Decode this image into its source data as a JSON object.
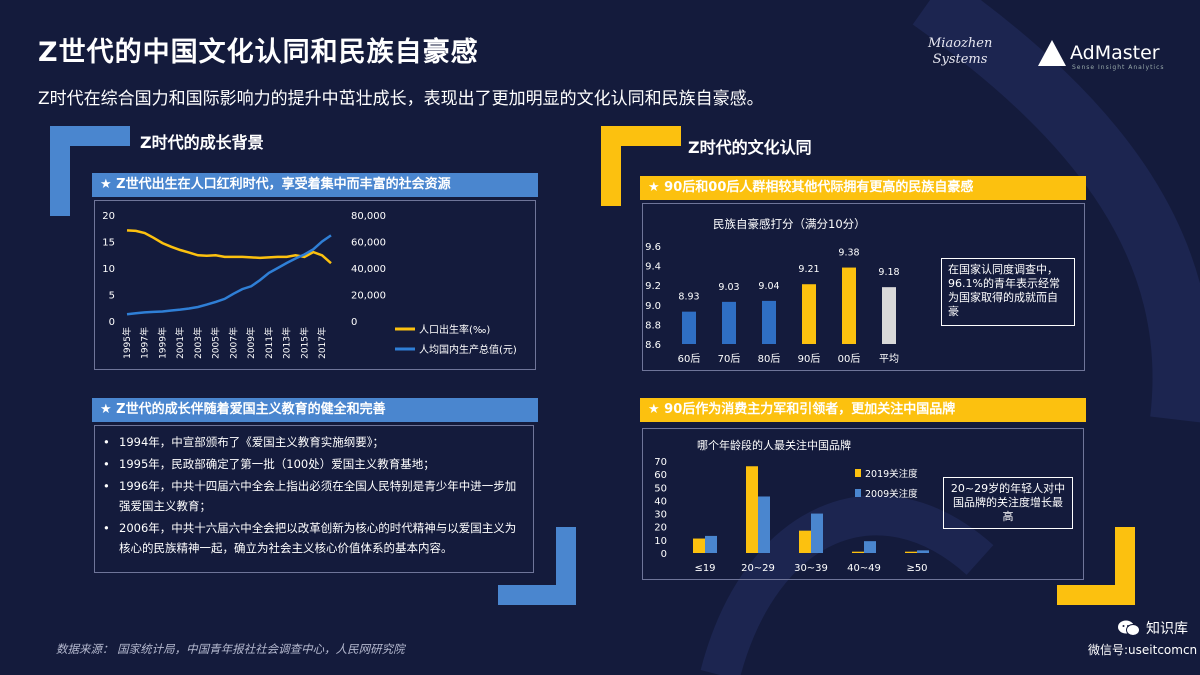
{
  "header": {
    "title": "Z世代的中国文化认同和民族自豪感",
    "subtitle": "Z时代在综合国力和国际影响力的提升中茁壮成长，表现出了更加明显的文化认同和民族自豪感。"
  },
  "logos": {
    "miaozhen_line1": "Miaozhen",
    "miaozhen_line2": "Systems",
    "admaster": "AdMaster",
    "admaster_tagline": "Sense Insight Analytics"
  },
  "left_section": {
    "title": "Z时代的成长背景",
    "box1_header": "★ Z世代出生在人口红利时代，享受着集中而丰富的社会资源",
    "box2_header": "★ Z世代的成长伴随着爱国主义教育的健全和完善",
    "education_items": [
      "1994年，中宣部颁布了《爱国主义教育实施纲要》；",
      "1995年，民政部确定了第一批（100处）爱国主义教育基地；",
      "1996年，中共十四届六中全会上指出必须在全国人民特别是青少年中进一步加强爱国主义教育；",
      "2006年，中共十六届六中全会把以改革创新为核心的时代精神与以爱国主义为核心的民族精神一起，确立为社会主义核心价值体系的基本内容。"
    ]
  },
  "right_section": {
    "title": "Z时代的文化认同",
    "box1_header": "★ 90后和00后人群相较其他代际拥有更高的民族自豪感",
    "box1_note": "在国家认同度调查中，96.1%的青年表示经常为国家取得的成就而自豪",
    "box2_header": "★ 90后作为消费主力军和引领者，更加关注中国品牌",
    "box2_note": "20~29岁的年轻人对中国品牌的关注度增长最高"
  },
  "chart_data": [
    {
      "type": "line",
      "x": [
        "1995年",
        "1996年",
        "1997年",
        "1998年",
        "1999年",
        "2000年",
        "2001年",
        "2002年",
        "2003年",
        "2004年",
        "2005年",
        "2006年",
        "2007年",
        "2008年",
        "2009年",
        "2010年",
        "2011年",
        "2012年",
        "2013年",
        "2014年",
        "2015年",
        "2016年",
        "2017年",
        "2018年"
      ],
      "x_tick_labels": [
        "1995年",
        "1997年",
        "1999年",
        "2001年",
        "2003年",
        "2005年",
        "2007年",
        "2009年",
        "2011年",
        "2013年",
        "2015年",
        "2017年"
      ],
      "series": [
        {
          "name": "人口出生率(‰)",
          "axis": "left",
          "color": "#fcc10f",
          "values": [
            17.1,
            17.0,
            16.6,
            15.7,
            14.7,
            14.0,
            13.4,
            12.9,
            12.4,
            12.3,
            12.4,
            12.1,
            12.1,
            12.1,
            12.0,
            11.9,
            12.0,
            12.1,
            12.1,
            12.4,
            12.1,
            13.0,
            12.4,
            10.9
          ]
        },
        {
          "name": "人均国内生产总值(元)",
          "axis": "right",
          "color": "#2f7fd6",
          "values": [
            5100,
            5800,
            6500,
            6900,
            7200,
            7900,
            8600,
            9400,
            10600,
            12400,
            14400,
            16700,
            20500,
            24100,
            26200,
            30900,
            36300,
            40000,
            43800,
            47200,
            50200,
            54100,
            60000,
            64600
          ]
        }
      ],
      "y_left_ticks": [
        "0",
        "5",
        "10",
        "15",
        "20"
      ],
      "y_left_range": [
        0,
        20
      ],
      "y_right_ticks": [
        "0",
        "20,000",
        "40,000",
        "60,000",
        "80,000"
      ],
      "y_right_range": [
        0,
        80000
      ],
      "legend_position": "bottom-right"
    },
    {
      "type": "bar",
      "title": "民族自豪感打分（满分10分）",
      "categories": [
        "60后",
        "70后",
        "80后",
        "90后",
        "00后",
        "平均"
      ],
      "values": [
        8.93,
        9.03,
        9.04,
        9.21,
        9.38,
        9.18
      ],
      "value_labels": [
        "8.93",
        "9.03",
        "9.04",
        "9.21",
        "9.38",
        "9.18"
      ],
      "colors": [
        "#2f6fc4",
        "#2f6fc4",
        "#2f6fc4",
        "#fcc10f",
        "#fcc10f",
        "#d9d9d9"
      ],
      "y_ticks": [
        "8.6",
        "8.8",
        "9.0",
        "9.2",
        "9.4",
        "9.6"
      ],
      "ylim": [
        8.6,
        9.6
      ]
    },
    {
      "type": "bar",
      "title": "哪个年龄段的人最关注中国品牌",
      "categories": [
        "≤19",
        "20~29",
        "30~39",
        "40~49",
        "≥50"
      ],
      "series": [
        {
          "name": "2019关注度",
          "color": "#fcc10f",
          "values": [
            11,
            66,
            17,
            1,
            1
          ]
        },
        {
          "name": "2009关注度",
          "color": "#4a86cf",
          "values": [
            13,
            43,
            30,
            9,
            2
          ]
        }
      ],
      "y_ticks": [
        "0",
        "10",
        "20",
        "30",
        "40",
        "50",
        "60",
        "70"
      ],
      "ylim": [
        0,
        70
      ],
      "legend_position": "top-right"
    }
  ],
  "footer": {
    "source": "数据来源：  国家统计局，中国青年报社社会调查中心，人民网研究院",
    "wechat_name": "知识库",
    "wechat_id": "微信号:useitcomcn"
  }
}
